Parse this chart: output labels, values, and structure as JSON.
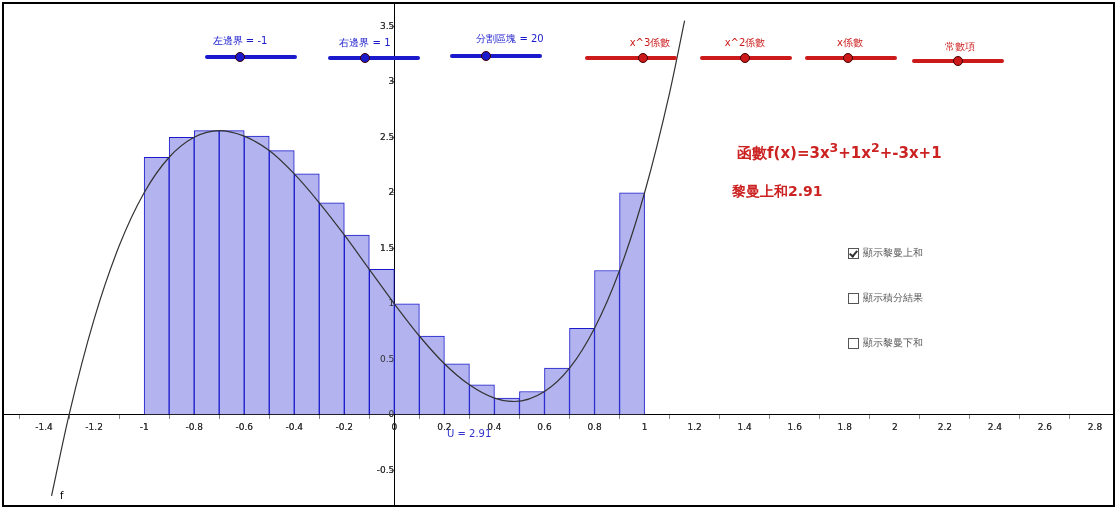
{
  "chart_data": {
    "type": "histogram",
    "bins": [
      -1,
      -0.9,
      -0.8,
      -0.7,
      -0.6,
      -0.5,
      -0.4,
      -0.3,
      -0.2,
      -0.1,
      0,
      0.1,
      0.2,
      0.3,
      0.4,
      0.5,
      0.6,
      0.7,
      0.8,
      0.9,
      1
    ],
    "values": [
      2.32,
      2.5,
      2.56,
      2.56,
      2.51,
      2.38,
      2.17,
      1.91,
      1.62,
      1.31,
      1.0,
      0.71,
      0.46,
      0.27,
      0.15,
      0.21,
      0.42,
      0.78,
      1.3,
      2.0
    ],
    "color": "#b3b4ef",
    "series": [
      {
        "type": "line",
        "name": "f",
        "color": "#333333",
        "x": [
          -1.37,
          -1.3,
          -1.2,
          -1.1,
          -1,
          -0.9,
          -0.8,
          -0.7,
          -0.6,
          -0.5,
          -0.4,
          -0.3,
          -0.2,
          -0.1,
          0,
          0.1,
          0.2,
          0.3,
          0.4,
          0.48,
          0.6,
          0.7,
          0.8,
          0.9,
          1,
          1.1,
          1.16
        ],
        "values": [
          -0.73,
          0.0,
          0.86,
          1.52,
          2.0,
          2.32,
          2.5,
          2.56,
          2.51,
          2.38,
          2.17,
          1.91,
          1.62,
          1.31,
          1.0,
          0.71,
          0.46,
          0.27,
          0.15,
          0.12,
          0.21,
          0.42,
          0.78,
          1.3,
          2.0,
          2.9,
          3.55
        ]
      }
    ],
    "xlim": [
      -1.56,
      2.88
    ],
    "ylim": [
      -0.83,
      3.7
    ],
    "xticks": [
      -1.4,
      -1.2,
      -1,
      -0.8,
      -0.6,
      -0.4,
      -0.2,
      0,
      0.2,
      0.4,
      0.6,
      0.8,
      1,
      1.2,
      1.4,
      1.6,
      1.8,
      2,
      2.2,
      2.4,
      2.6,
      2.8
    ],
    "yticks": [
      -0.5,
      0,
      0.5,
      1,
      1.5,
      2,
      2.5,
      3,
      3.5
    ],
    "grid": false,
    "legend": false,
    "annotations": [
      "左邊界 = -1",
      "右邊界 = 1",
      "分割區塊 = 20",
      "x^3係數",
      "x^2係數",
      "x係數",
      "常數項",
      "函數f(x)=3x$^{3}$+1x$^{2}$+-3x+1",
      "黎曼上和2.91",
      "顯示黎曼上和",
      "顯示積分結果",
      "顯示黎曼下和",
      "U = 2.91"
    ]
  }
}
